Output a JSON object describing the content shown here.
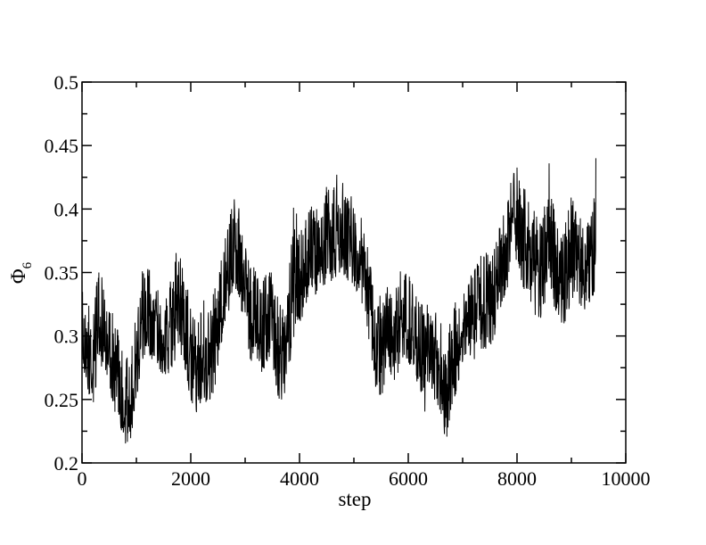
{
  "chart_data": {
    "type": "line",
    "title": "",
    "xlabel": "step",
    "ylabel": "Φ",
    "ylabel_subscript": "6",
    "xlim": [
      0,
      10000
    ],
    "ylim": [
      0.2,
      0.5
    ],
    "x_ticks": [
      "0",
      "2000",
      "4000",
      "6000",
      "8000",
      "10000"
    ],
    "y_ticks": [
      "0.2",
      "0.25",
      "0.3",
      "0.35",
      "0.4",
      "0.45",
      "0.5"
    ],
    "grid": false,
    "legend": "none",
    "line_color": "#000000",
    "series": [
      {
        "x": [
          0,
          100,
          200,
          300,
          400,
          500,
          600,
          700,
          800,
          900,
          1000,
          1100,
          1200,
          1300,
          1400,
          1500,
          1600,
          1700,
          1800,
          1900,
          2000,
          2100,
          2200,
          2300,
          2400,
          2500,
          2600,
          2700,
          2800,
          2900,
          3000,
          3100,
          3200,
          3300,
          3400,
          3500,
          3600,
          3700,
          3800,
          3900,
          4000,
          4100,
          4200,
          4300,
          4400,
          4500,
          4600,
          4700,
          4800,
          4900,
          5000,
          5100,
          5200,
          5300,
          5400,
          5500,
          5600,
          5700,
          5800,
          5900,
          6000,
          6100,
          6200,
          6300,
          6400,
          6500,
          6600,
          6700,
          6800,
          6900,
          7000,
          7100,
          7200,
          7300,
          7400,
          7500,
          7600,
          7700,
          7800,
          7900,
          8000,
          8100,
          8200,
          8300,
          8400,
          8500,
          8600,
          8700,
          8800,
          8900,
          9000,
          9100,
          9200,
          9300,
          9400,
          9450
        ],
        "mean": [
          0.3,
          0.29,
          0.28,
          0.31,
          0.3,
          0.29,
          0.27,
          0.26,
          0.24,
          0.25,
          0.28,
          0.31,
          0.32,
          0.31,
          0.31,
          0.3,
          0.31,
          0.32,
          0.33,
          0.31,
          0.28,
          0.27,
          0.28,
          0.3,
          0.29,
          0.31,
          0.33,
          0.35,
          0.37,
          0.36,
          0.34,
          0.32,
          0.31,
          0.3,
          0.31,
          0.31,
          0.29,
          0.28,
          0.31,
          0.34,
          0.34,
          0.35,
          0.37,
          0.36,
          0.37,
          0.38,
          0.37,
          0.38,
          0.39,
          0.37,
          0.37,
          0.36,
          0.35,
          0.33,
          0.3,
          0.29,
          0.3,
          0.29,
          0.31,
          0.32,
          0.31,
          0.3,
          0.29,
          0.28,
          0.29,
          0.28,
          0.27,
          0.25,
          0.28,
          0.29,
          0.31,
          0.32,
          0.31,
          0.32,
          0.33,
          0.32,
          0.33,
          0.35,
          0.36,
          0.39,
          0.39,
          0.38,
          0.37,
          0.36,
          0.35,
          0.36,
          0.38,
          0.35,
          0.34,
          0.35,
          0.37,
          0.36,
          0.35,
          0.35,
          0.36,
          0.37
        ],
        "min": [
          0.28,
          0.26,
          0.24,
          0.27,
          0.28,
          0.26,
          0.24,
          0.23,
          0.21,
          0.22,
          0.25,
          0.28,
          0.29,
          0.27,
          0.27,
          0.27,
          0.27,
          0.28,
          0.29,
          0.27,
          0.25,
          0.24,
          0.24,
          0.25,
          0.25,
          0.27,
          0.3,
          0.32,
          0.34,
          0.33,
          0.3,
          0.28,
          0.28,
          0.27,
          0.28,
          0.28,
          0.25,
          0.25,
          0.27,
          0.3,
          0.31,
          0.32,
          0.34,
          0.33,
          0.34,
          0.34,
          0.34,
          0.35,
          0.35,
          0.34,
          0.34,
          0.33,
          0.32,
          0.29,
          0.26,
          0.25,
          0.27,
          0.26,
          0.27,
          0.28,
          0.28,
          0.27,
          0.26,
          0.24,
          0.25,
          0.25,
          0.24,
          0.21,
          0.24,
          0.26,
          0.28,
          0.28,
          0.28,
          0.29,
          0.29,
          0.29,
          0.3,
          0.32,
          0.33,
          0.36,
          0.36,
          0.34,
          0.33,
          0.32,
          0.31,
          0.32,
          0.34,
          0.32,
          0.31,
          0.31,
          0.33,
          0.33,
          0.32,
          0.32,
          0.33,
          0.34
        ],
        "max": [
          0.35,
          0.33,
          0.32,
          0.35,
          0.35,
          0.33,
          0.31,
          0.3,
          0.28,
          0.29,
          0.32,
          0.35,
          0.36,
          0.34,
          0.34,
          0.34,
          0.35,
          0.36,
          0.38,
          0.35,
          0.32,
          0.31,
          0.32,
          0.34,
          0.33,
          0.35,
          0.37,
          0.39,
          0.41,
          0.4,
          0.37,
          0.36,
          0.35,
          0.34,
          0.35,
          0.35,
          0.33,
          0.32,
          0.35,
          0.41,
          0.38,
          0.39,
          0.41,
          0.4,
          0.41,
          0.42,
          0.41,
          0.43,
          0.42,
          0.41,
          0.41,
          0.4,
          0.38,
          0.36,
          0.34,
          0.33,
          0.34,
          0.33,
          0.34,
          0.36,
          0.35,
          0.34,
          0.33,
          0.32,
          0.33,
          0.32,
          0.31,
          0.29,
          0.32,
          0.33,
          0.34,
          0.35,
          0.35,
          0.36,
          0.37,
          0.36,
          0.37,
          0.39,
          0.4,
          0.43,
          0.44,
          0.42,
          0.41,
          0.4,
          0.39,
          0.4,
          0.44,
          0.39,
          0.38,
          0.39,
          0.41,
          0.4,
          0.39,
          0.39,
          0.4,
          0.44
        ]
      }
    ]
  }
}
